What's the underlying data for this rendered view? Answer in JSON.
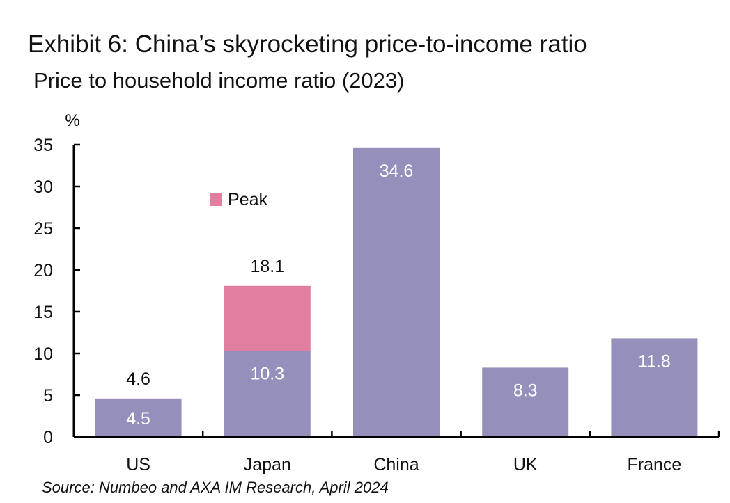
{
  "title": "Exhibit 6: China’s skyrocketing price-to-income ratio",
  "subtitle": "Price to household income ratio (2023)",
  "source": "Source: Numbeo and AXA IM Research, April 2024",
  "colors": {
    "base": "#9490bb",
    "peak": "#e27ea0",
    "axis": "#000000",
    "label_light": "#ffffff",
    "label_dark": "#111111"
  },
  "chart_data": {
    "type": "bar",
    "stacked": true,
    "categories": [
      "US",
      "Japan",
      "China",
      "UK",
      "France"
    ],
    "series": [
      {
        "values": [
          4.5,
          10.3,
          34.6,
          8.3,
          11.8
        ],
        "color": "#9490bb"
      },
      {
        "name": "Peak",
        "values": [
          0.1,
          7.8,
          0,
          0,
          0
        ],
        "color": "#e27ea0"
      }
    ],
    "base_labels": [
      "4.5",
      "10.3",
      "34.6",
      "8.3",
      "11.8"
    ],
    "peak_labels": [
      "4.6",
      "18.1",
      "",
      "",
      ""
    ],
    "ylabel": "%",
    "ylim": [
      0,
      35
    ],
    "yticks": [
      0,
      5,
      10,
      15,
      20,
      25,
      30,
      35
    ],
    "legend": {
      "label": "Peak",
      "placement": "top-left"
    },
    "grid": false
  }
}
